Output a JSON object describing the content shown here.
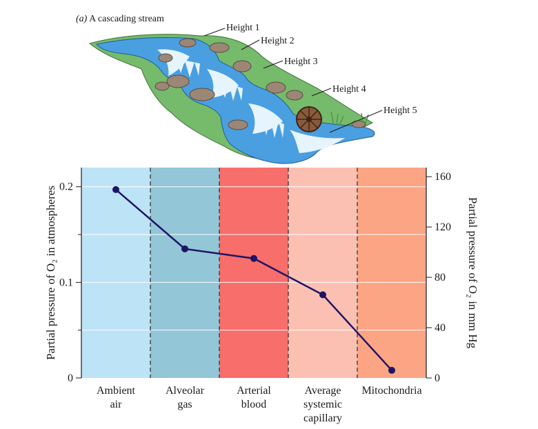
{
  "figure": {
    "panel_letter": "(a)",
    "panel_title": "A cascading stream",
    "height_labels": [
      "Height 1",
      "Height 2",
      "Height 3",
      "Height 4",
      "Height 5"
    ]
  },
  "colors": {
    "ambient": "#bde3f7",
    "alveolar": "#93c6d7",
    "arterial": "#f86e6a",
    "capillary": "#fcc0b2",
    "mito": "#fca584",
    "line": "#1e1466",
    "water": "#4a9fe0",
    "grass": "#75bb6b",
    "rock": "#9c8676"
  },
  "chart_data": {
    "type": "line",
    "categories": [
      [
        "Ambient",
        "air"
      ],
      [
        "Alveolar",
        "gas"
      ],
      [
        "Arterial",
        "blood"
      ],
      [
        "Average",
        "systemic",
        "capillary"
      ],
      [
        "Mitochondria"
      ]
    ],
    "series": [
      {
        "values_atm": [
          0.197,
          0.135,
          0.125,
          0.087,
          0.008
        ]
      }
    ],
    "ylabel_left": "Partial pressure of O₂ in atmospheres",
    "ylabel_right": "Partial pressure of O₂ in mm Hg",
    "ylim_left": [
      0,
      0.22
    ],
    "ylim_right": [
      0,
      167.2
    ],
    "yticks_left": [
      {
        "value": 0,
        "label": "0"
      },
      {
        "value": 0.1,
        "label": "0.1"
      },
      {
        "value": 0.2,
        "label": "0.2"
      }
    ],
    "yticks_right": [
      {
        "value": 0,
        "label": "0"
      },
      {
        "value": 40,
        "label": "40"
      },
      {
        "value": 80,
        "label": "80"
      },
      {
        "value": 120,
        "label": "120"
      },
      {
        "value": 160,
        "label": "160"
      }
    ],
    "grid": true,
    "legend": "none"
  }
}
